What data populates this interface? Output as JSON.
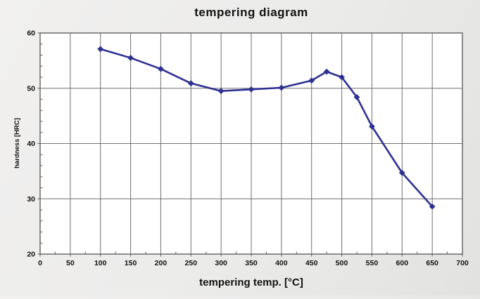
{
  "chart_data": {
    "type": "line",
    "title": "tempering diagram",
    "xlabel": "tempering temp. [°C]",
    "ylabel": "hardness [HRC]",
    "series": [
      {
        "name": "hardness",
        "x": [
          100,
          150,
          200,
          250,
          300,
          350,
          400,
          450,
          475,
          500,
          525,
          550,
          600,
          650
        ],
        "y": [
          57.1,
          55.5,
          53.5,
          50.9,
          49.5,
          49.8,
          50.1,
          51.4,
          53.0,
          52.0,
          48.4,
          43.1,
          34.7,
          28.6
        ]
      }
    ],
    "xlim": [
      0,
      700
    ],
    "ylim": [
      20,
      60
    ],
    "xticks": [
      0,
      50,
      100,
      150,
      200,
      250,
      300,
      350,
      400,
      450,
      500,
      550,
      600,
      650,
      700
    ],
    "yticks": [
      20,
      30,
      40,
      50,
      60
    ],
    "x_major_step": 50,
    "x_minor_step": 25,
    "y_major_step": 10,
    "y_minor_step": 2,
    "grid": "major-on",
    "legend": "none",
    "marker": "diamond",
    "colors": {
      "line": "#2e3192",
      "grid": "#6f6f6f",
      "frame": "#5f5f5f",
      "text": "#121212",
      "plot_bg": "#ffffff",
      "page_bg": "#ebebea"
    }
  }
}
